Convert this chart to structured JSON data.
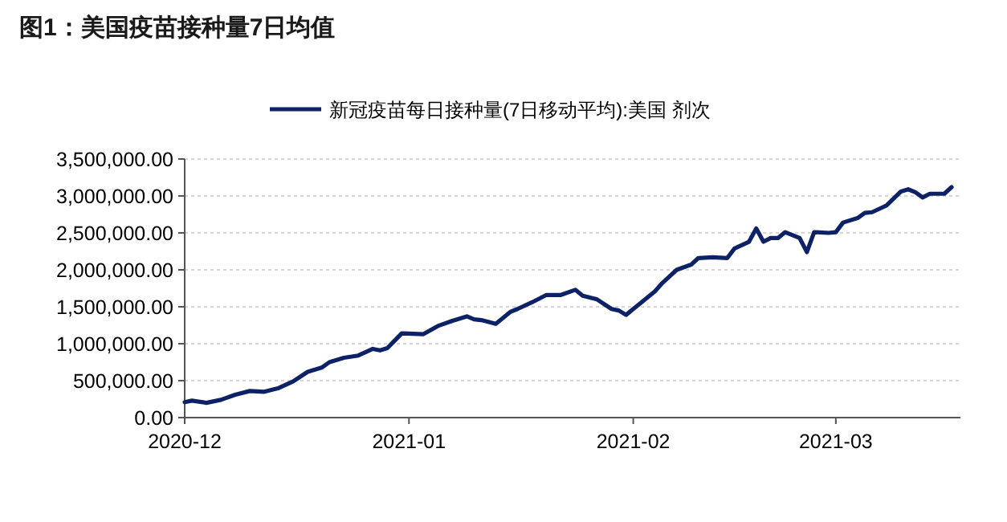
{
  "chart_data": {
    "type": "line",
    "title": "图1：美国疫苗接种量7日均值",
    "x": [
      "2020-12-01",
      "2020-12-02",
      "2020-12-04",
      "2020-12-06",
      "2020-12-08",
      "2020-12-10",
      "2020-12-12",
      "2020-12-14",
      "2020-12-16",
      "2020-12-18",
      "2020-12-19",
      "2020-12-20",
      "2020-12-21",
      "2020-12-23",
      "2020-12-25",
      "2020-12-27",
      "2020-12-28",
      "2020-12-29",
      "2020-12-30",
      "2020-12-31",
      "2021-01-03",
      "2021-01-05",
      "2021-01-07",
      "2021-01-09",
      "2021-01-10",
      "2021-01-11",
      "2021-01-13",
      "2021-01-15",
      "2021-01-16",
      "2021-01-18",
      "2021-01-20",
      "2021-01-22",
      "2021-01-24",
      "2021-01-25",
      "2021-01-27",
      "2021-01-29",
      "2021-01-30",
      "2021-01-31",
      "2021-02-01",
      "2021-02-02",
      "2021-02-04",
      "2021-02-05",
      "2021-02-07",
      "2021-02-09",
      "2021-02-10",
      "2021-02-12",
      "2021-02-14",
      "2021-02-15",
      "2021-02-17",
      "2021-02-18",
      "2021-02-19",
      "2021-02-20",
      "2021-02-21",
      "2021-02-22",
      "2021-02-24",
      "2021-02-25",
      "2021-02-26",
      "2021-02-28",
      "2021-03-01",
      "2021-03-02",
      "2021-03-04",
      "2021-03-05",
      "2021-03-06",
      "2021-03-08",
      "2021-03-10",
      "2021-03-11",
      "2021-03-12",
      "2021-03-13",
      "2021-03-14",
      "2021-03-16",
      "2021-03-17"
    ],
    "series": [
      {
        "name": "新冠疫苗每日接种量(7日移动平均):美国 剂次",
        "color": "#0d2166",
        "values": [
          210000,
          230000,
          200000,
          240000,
          310000,
          360000,
          350000,
          400000,
          490000,
          620000,
          650000,
          680000,
          750000,
          810000,
          840000,
          930000,
          910000,
          940000,
          1040000,
          1140000,
          1130000,
          1240000,
          1310000,
          1370000,
          1330000,
          1320000,
          1270000,
          1430000,
          1470000,
          1560000,
          1660000,
          1660000,
          1730000,
          1650000,
          1600000,
          1470000,
          1450000,
          1390000,
          1470000,
          1550000,
          1710000,
          1820000,
          2000000,
          2070000,
          2160000,
          2170000,
          2160000,
          2290000,
          2380000,
          2560000,
          2380000,
          2430000,
          2430000,
          2510000,
          2430000,
          2240000,
          2510000,
          2500000,
          2510000,
          2640000,
          2700000,
          2770000,
          2780000,
          2870000,
          3060000,
          3090000,
          3050000,
          2980000,
          3030000,
          3030000,
          3120000
        ]
      }
    ],
    "xlim": [
      "2020-12-01",
      "2021-03-18"
    ],
    "xticks": [
      {
        "value": "2020-12-01",
        "label": "2020-12"
      },
      {
        "value": "2021-01-01",
        "label": "2021-01"
      },
      {
        "value": "2021-02-01",
        "label": "2021-02"
      },
      {
        "value": "2021-03-01",
        "label": "2021-03"
      }
    ],
    "ylim": [
      0,
      3500000
    ],
    "yticks": [
      {
        "value": 0,
        "label": "0.00"
      },
      {
        "value": 500000,
        "label": "500,000.00"
      },
      {
        "value": 1000000,
        "label": "1,000,000.00"
      },
      {
        "value": 1500000,
        "label": "1,500,000.00"
      },
      {
        "value": 2000000,
        "label": "2,000,000.00"
      },
      {
        "value": 2500000,
        "label": "2,500,000.00"
      },
      {
        "value": 3000000,
        "label": "3,000,000.00"
      },
      {
        "value": 3500000,
        "label": "3,500,000.00"
      }
    ],
    "grid": "y",
    "legend": "top",
    "marker": "none",
    "line_style": "solid"
  }
}
